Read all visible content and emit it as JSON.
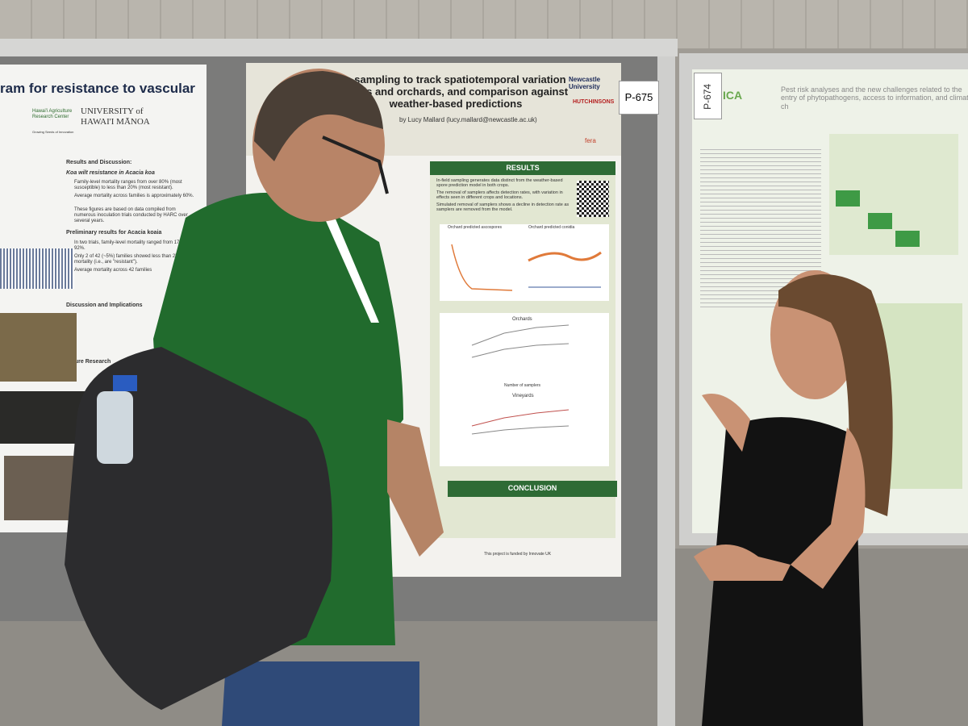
{
  "left_poster": {
    "title": "ram for resistance to vascular",
    "org": "Hawai'i Agriculture Research Center",
    "tagline": "Growing Seeds of Innovation",
    "university": "UNIVERSITY of HAWAI'I MĀNOA",
    "heading": "Results and Discussion:",
    "subheading": "Koa wilt resistance in Acacia koa",
    "bullets": [
      "Family-level mortality ranges from over 80% (most susceptible) to less than 20% (most resistant).",
      "Average mortality across families is approximately 60%.",
      "These figures are based on data compiled from numerous inoculation trials conducted by HARC over several years."
    ],
    "subheading2": "Preliminary results for Acacia koaia",
    "bullets2": [
      "In two trials, family-level mortality ranged from 17% to 92%.",
      "Only 2 of 42 (~5%) families showed less than 25% mortality (i.e., are \"resistant\").",
      "Average mortality across 42 families"
    ],
    "subheading3": "Discussion and Implications",
    "subheading4": "Future Research"
  },
  "middle_poster": {
    "board_number": "P-675",
    "title": "e sampling to track spatiotemporal variation in rds and orchards, and comparison against weather-based predictions",
    "author_line": "by Lucy Mallard (lucy.mallard@newcastle.ac.uk)",
    "logos": [
      "Newcastle University",
      "HUTCHINSONS",
      "fera"
    ],
    "results_heading": "RESULTS",
    "results_bullets": [
      "In-field sampling generates data distinct from the weather-based spore prediction model in both crops.",
      "The removal of samplers affects detection rates, with variation in effects seen in different crops and locations.",
      "Simulated removal of samplers shows a decline in detection rate as samplers are removed from the model."
    ],
    "chart_titles": [
      "Orchard predicted ascospores",
      "Orchard predicted conidia",
      "Orchards",
      "Vineyards"
    ],
    "x_axis_label": "Number of samplers",
    "conclusion_heading": "CONCLUSION",
    "funding": "This project is funded by Innovate UK"
  },
  "right_poster": {
    "board_number": "P-674",
    "org": "ICA",
    "title": "Pest risk analyses and the new challenges related to the entry of phytopathogens, access to information, and climate ch"
  }
}
